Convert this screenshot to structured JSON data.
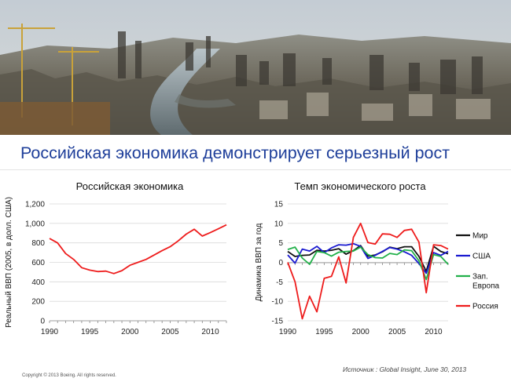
{
  "slide": {
    "title": "Российская экономика демонстрирует серьезный рост",
    "source": "Источник : Global Insight, June 30, 2013",
    "copyright": "Copyright © 2013 Boeing. All rights reserved."
  },
  "colors": {
    "title": "#1f3f9a",
    "russia": "#ee1c1c",
    "world": "#111111",
    "usa": "#1a1ad0",
    "europe": "#22b04a",
    "sky": "#cfd6dc"
  },
  "chart_data": [
    {
      "type": "line",
      "title": "Российская экономика",
      "ylabel": "Реальный ВВП (2005, в долл. США)",
      "xlabel": "",
      "xlim": [
        1990,
        2012
      ],
      "ylim": [
        0,
        1200
      ],
      "x_ticks": [
        1990,
        1995,
        2000,
        2005,
        2010
      ],
      "x_tick_labels": [
        "1990",
        "1995",
        "2000",
        "2005",
        "2010"
      ],
      "y_ticks": [
        0,
        200,
        400,
        600,
        800,
        1000,
        1200
      ],
      "y_tick_labels": [
        "0",
        "200",
        "400",
        "600",
        "800",
        "1,000",
        "1,200"
      ],
      "grid": "horizontal",
      "legend": "none",
      "series": [
        {
          "color": "#ee1c1c",
          "x": [
            1990,
            1991,
            1992,
            1993,
            1994,
            1995,
            1996,
            1997,
            1998,
            1999,
            2000,
            2001,
            2002,
            2003,
            2004,
            2005,
            2006,
            2007,
            2008,
            2009,
            2010,
            2011,
            2012
          ],
          "y": [
            845,
            800,
            690,
            630,
            545,
            520,
            505,
            510,
            485,
            515,
            570,
            600,
            630,
            675,
            720,
            760,
            820,
            890,
            940,
            870,
            905,
            945,
            985
          ]
        }
      ]
    },
    {
      "type": "line",
      "title": "Темп экономического роста",
      "ylabel": "Динамика ВВП за год",
      "xlabel": "",
      "xlim": [
        1990,
        2012
      ],
      "ylim": [
        -15,
        15
      ],
      "x_ticks": [
        1990,
        1995,
        2000,
        2005,
        2010
      ],
      "x_tick_labels": [
        "1990",
        "1995",
        "2000",
        "2005",
        "2010"
      ],
      "y_ticks": [
        -15,
        -10,
        -5,
        0,
        5,
        10,
        15
      ],
      "y_tick_labels": [
        "-15",
        "-10",
        "-5",
        "0",
        "5",
        "10",
        "15"
      ],
      "grid": "horizontal",
      "legend": "right",
      "series": [
        {
          "name": "Мир",
          "color": "#111111",
          "x": [
            1990,
            1991,
            1992,
            1993,
            1994,
            1995,
            1996,
            1997,
            1998,
            1999,
            2000,
            2001,
            2002,
            2003,
            2004,
            2005,
            2006,
            2007,
            2008,
            2009,
            2010,
            2011,
            2012
          ],
          "y": [
            2.8,
            1.5,
            1.8,
            1.9,
            3.1,
            2.9,
            3.1,
            3.5,
            2.1,
            3.0,
            4.3,
            1.6,
            1.9,
            2.7,
            3.9,
            3.5,
            4.0,
            4.0,
            1.5,
            -2.3,
            4.1,
            2.8,
            2.2
          ]
        },
        {
          "name": "США",
          "color": "#1a1ad0",
          "x": [
            1990,
            1991,
            1992,
            1993,
            1994,
            1995,
            1996,
            1997,
            1998,
            1999,
            2000,
            2001,
            2002,
            2003,
            2004,
            2005,
            2006,
            2007,
            2008,
            2009,
            2010,
            2011,
            2012
          ],
          "y": [
            1.9,
            -0.2,
            3.4,
            2.9,
            4.1,
            2.5,
            3.7,
            4.5,
            4.4,
            4.8,
            4.1,
            1.0,
            1.8,
            2.8,
            3.8,
            3.4,
            2.7,
            1.8,
            -0.3,
            -2.8,
            2.5,
            1.8,
            2.8
          ]
        },
        {
          "name": "Зап. Европа",
          "color": "#22b04a",
          "x": [
            1990,
            1991,
            1992,
            1993,
            1994,
            1995,
            1996,
            1997,
            1998,
            1999,
            2000,
            2001,
            2002,
            2003,
            2004,
            2005,
            2006,
            2007,
            2008,
            2009,
            2010,
            2011,
            2012
          ],
          "y": [
            3.3,
            3.9,
            1.1,
            -0.5,
            2.8,
            2.5,
            1.6,
            2.6,
            2.8,
            2.9,
            3.9,
            2.0,
            1.2,
            1.1,
            2.3,
            2.0,
            3.2,
            3.0,
            0.4,
            -4.4,
            2.0,
            1.5,
            -0.5
          ]
        },
        {
          "name": "Россия",
          "color": "#ee1c1c",
          "x": [
            1990,
            1991,
            1992,
            1993,
            1994,
            1995,
            1996,
            1997,
            1998,
            1999,
            2000,
            2001,
            2002,
            2003,
            2004,
            2005,
            2006,
            2007,
            2008,
            2009,
            2010,
            2011,
            2012
          ],
          "y": [
            0.0,
            -5.0,
            -14.5,
            -8.7,
            -12.7,
            -4.1,
            -3.6,
            1.4,
            -5.3,
            6.4,
            10.0,
            5.1,
            4.7,
            7.3,
            7.2,
            6.4,
            8.2,
            8.5,
            5.2,
            -7.8,
            4.5,
            4.3,
            3.4
          ]
        }
      ]
    }
  ]
}
